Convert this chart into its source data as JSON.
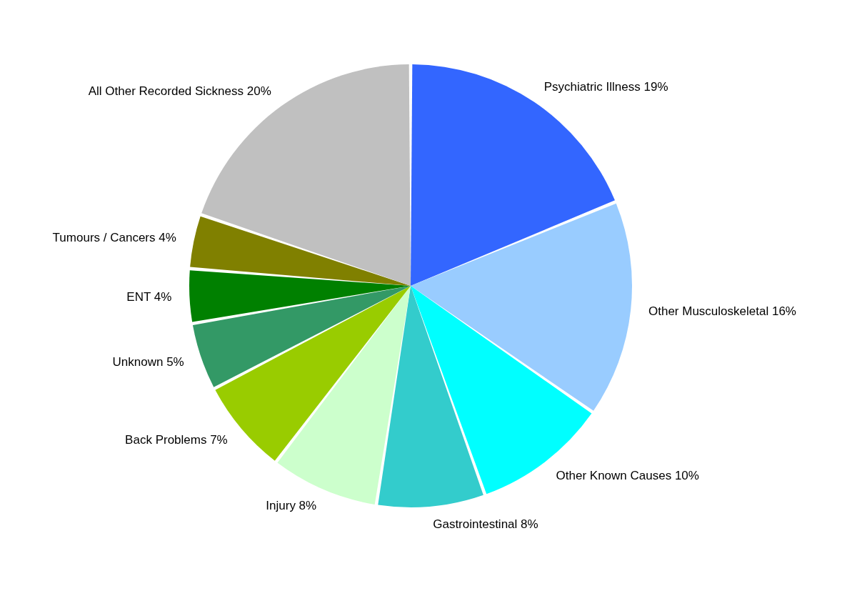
{
  "chart_data": {
    "type": "pie",
    "categories": [
      "Psychiatric Illness",
      "Other Musculoskeletal",
      "Other Known Causes",
      "Gastrointestinal",
      "Injury",
      "Back Problems",
      "Unknown",
      "ENT",
      "Tumours / Cancers",
      "All Other Recorded Sickness"
    ],
    "values": [
      19,
      16,
      10,
      8,
      8,
      7,
      5,
      4,
      4,
      20
    ],
    "value_labels": [
      "19%",
      "16%",
      "10%",
      "8%",
      "8%",
      "7%",
      "5%",
      "4%",
      "4%",
      "20%"
    ],
    "colors": [
      "#3366ff",
      "#99ccff",
      "#00ffff",
      "#33cccc",
      "#ccffcc",
      "#99cc00",
      "#339966",
      "#008000",
      "#808000",
      "#c0c0c0"
    ],
    "legend": false
  }
}
